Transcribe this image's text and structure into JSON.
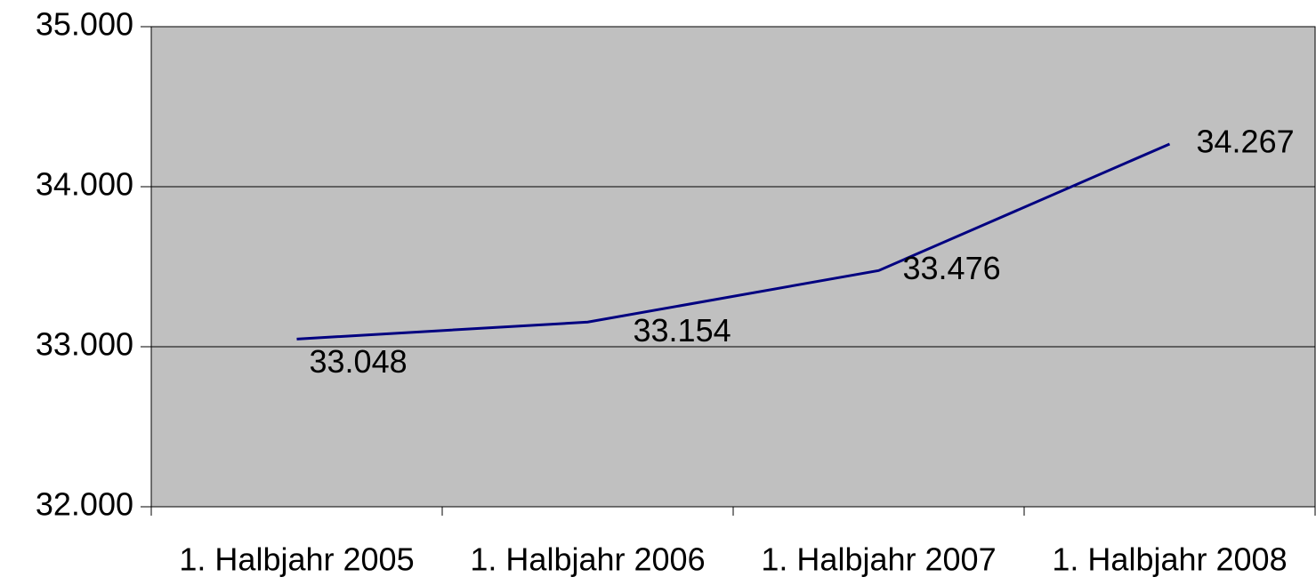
{
  "chart_data": {
    "type": "line",
    "categories": [
      "1. Halbjahr 2005",
      "1. Halbjahr 2006",
      "1. Halbjahr 2007",
      "1. Halbjahr 2008"
    ],
    "values": [
      33048,
      33154,
      33476,
      34267
    ],
    "value_labels": [
      "33.048",
      "33.154",
      "33.476",
      "34.267"
    ],
    "color": "#000080",
    "ylim": [
      32000,
      35000
    ],
    "yticks": [
      {
        "value": 32000,
        "label": "32.000"
      },
      {
        "value": 33000,
        "label": "33.000"
      },
      {
        "value": 34000,
        "label": "34.000"
      },
      {
        "value": 35000,
        "label": "35.000"
      }
    ],
    "grid": true
  }
}
